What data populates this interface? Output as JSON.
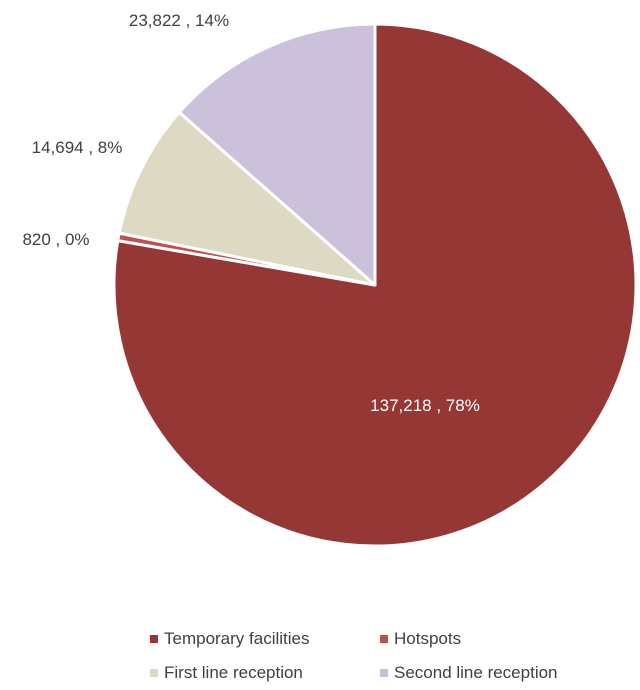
{
  "chart_data": {
    "type": "pie",
    "slices": [
      {
        "name": "Temporary facilities",
        "value": 137218,
        "label": "137,218 , 78%",
        "color": "#953735"
      },
      {
        "name": "Hotspots",
        "value": 820,
        "label": "820 , 0%",
        "color": "#c0504d"
      },
      {
        "name": "First line reception",
        "value": 14694,
        "label": "14,694 , 8%",
        "color": "#ddd9c3"
      },
      {
        "name": "Second line reception",
        "value": 23822,
        "label": "23,822 , 14%",
        "color": "#ccc1da"
      }
    ],
    "start_angle_deg": 0,
    "direction": "clockwise",
    "legend_position": "bottom"
  }
}
